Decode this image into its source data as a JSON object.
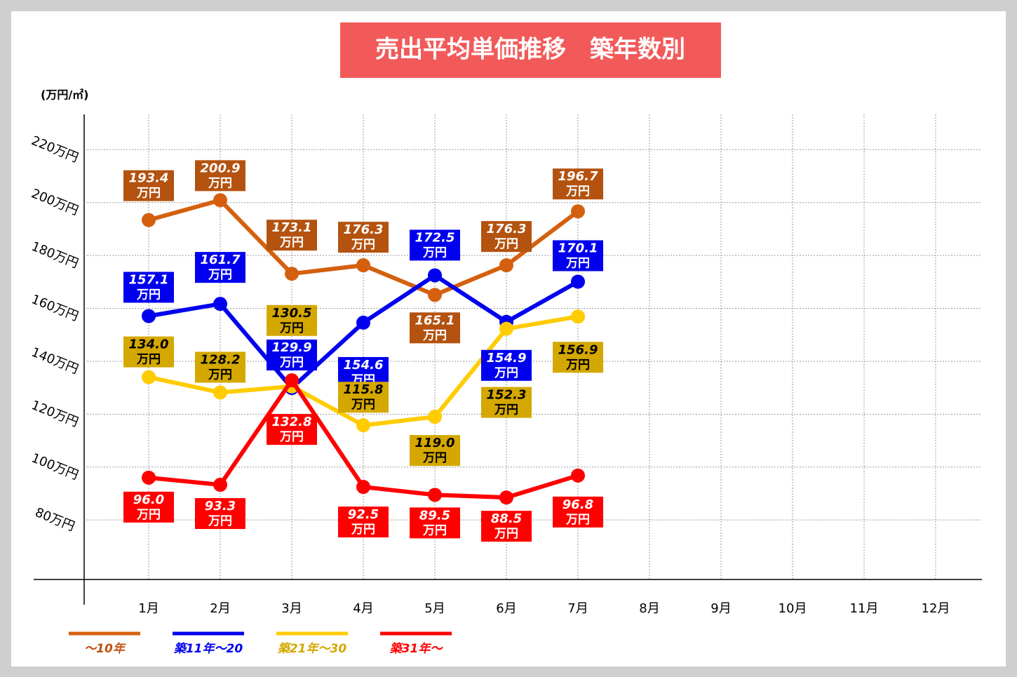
{
  "chart_data": {
    "type": "line",
    "title": "売出平均単価推移　築年数別",
    "y_label": "(万円/㎡)",
    "categories": [
      "1月",
      "2月",
      "3月",
      "4月",
      "5月",
      "6月",
      "7月",
      "8月",
      "9月",
      "10月",
      "11月",
      "12月"
    ],
    "ylim": [
      57.5,
      233
    ],
    "yticks": [
      {
        "value": 80,
        "label": "80万円"
      },
      {
        "value": 100,
        "label": "100万円"
      },
      {
        "value": 120,
        "label": "120万円"
      },
      {
        "value": 140,
        "label": "140万円"
      },
      {
        "value": 160,
        "label": "160万円"
      },
      {
        "value": 180,
        "label": "180万円"
      },
      {
        "value": 200,
        "label": "200万円"
      },
      {
        "value": 220,
        "label": "220万円"
      }
    ],
    "grid": true,
    "legend": "bottom",
    "series": [
      {
        "name": "～10年",
        "color": "#d4600f",
        "label_color": "#b4520f",
        "text_color": "#ffffff",
        "legend_text_color": "#c0500f",
        "values": [
          193.4,
          200.9,
          173.1,
          176.3,
          165.1,
          176.3,
          196.7,
          null,
          null,
          null,
          null,
          null
        ],
        "value_labels": [
          [
            "193.4",
            "万円"
          ],
          [
            "200.9",
            "万円"
          ],
          [
            "173.1",
            "万円"
          ],
          [
            "176.3",
            "万円"
          ],
          [
            "165.1",
            "万円"
          ],
          [
            "176.3",
            "万円"
          ],
          [
            "196.7",
            "万円"
          ],
          null,
          null,
          null,
          null,
          null
        ]
      },
      {
        "name": "築11年～20",
        "color": "#0000ee",
        "label_color": "#0000ee",
        "text_color": "#ffffff",
        "legend_text_color": "#0000ee",
        "values": [
          157.1,
          161.7,
          129.9,
          154.6,
          172.5,
          154.9,
          170.1,
          null,
          null,
          null,
          null,
          null
        ],
        "value_labels": [
          [
            "157.1",
            "万円"
          ],
          [
            "161.7",
            "万円"
          ],
          [
            "129.9",
            "万円"
          ],
          [
            "154.6",
            "万円"
          ],
          [
            "172.5",
            "万円"
          ],
          [
            "154.9",
            "万円"
          ],
          [
            "170.1",
            "万円"
          ],
          null,
          null,
          null,
          null,
          null
        ]
      },
      {
        "name": "築21年～30",
        "color": "#ffcc00",
        "label_color": "#d4a800",
        "text_color": "#000000",
        "legend_text_color": "#d4a800",
        "values": [
          134.0,
          128.2,
          130.5,
          115.8,
          119.0,
          152.3,
          156.9,
          null,
          null,
          null,
          null,
          null
        ],
        "value_labels": [
          [
            "134.0",
            "万円"
          ],
          [
            "128.2",
            "万円"
          ],
          [
            "130.5",
            "万円"
          ],
          [
            "115.8",
            "万円"
          ],
          [
            "119.0",
            "万円"
          ],
          [
            "152.3",
            "万円"
          ],
          [
            "156.9",
            "万円"
          ],
          null,
          null,
          null,
          null,
          null
        ]
      },
      {
        "name": "築31年～",
        "color": "#ff0000",
        "label_color": "#ff0000",
        "text_color": "#ffffff",
        "legend_text_color": "#ff0000",
        "values": [
          96.0,
          93.3,
          132.8,
          92.5,
          89.5,
          88.5,
          96.8,
          null,
          null,
          null,
          null,
          null
        ],
        "value_labels": [
          [
            "96.0",
            "万円"
          ],
          [
            "93.3",
            "万円"
          ],
          [
            "132.8",
            "万円"
          ],
          [
            "92.5",
            "万円"
          ],
          [
            "89.5",
            "万円"
          ],
          [
            "88.5",
            "万円"
          ],
          [
            "96.8",
            "万円"
          ],
          null,
          null,
          null,
          null,
          null
        ]
      }
    ]
  }
}
